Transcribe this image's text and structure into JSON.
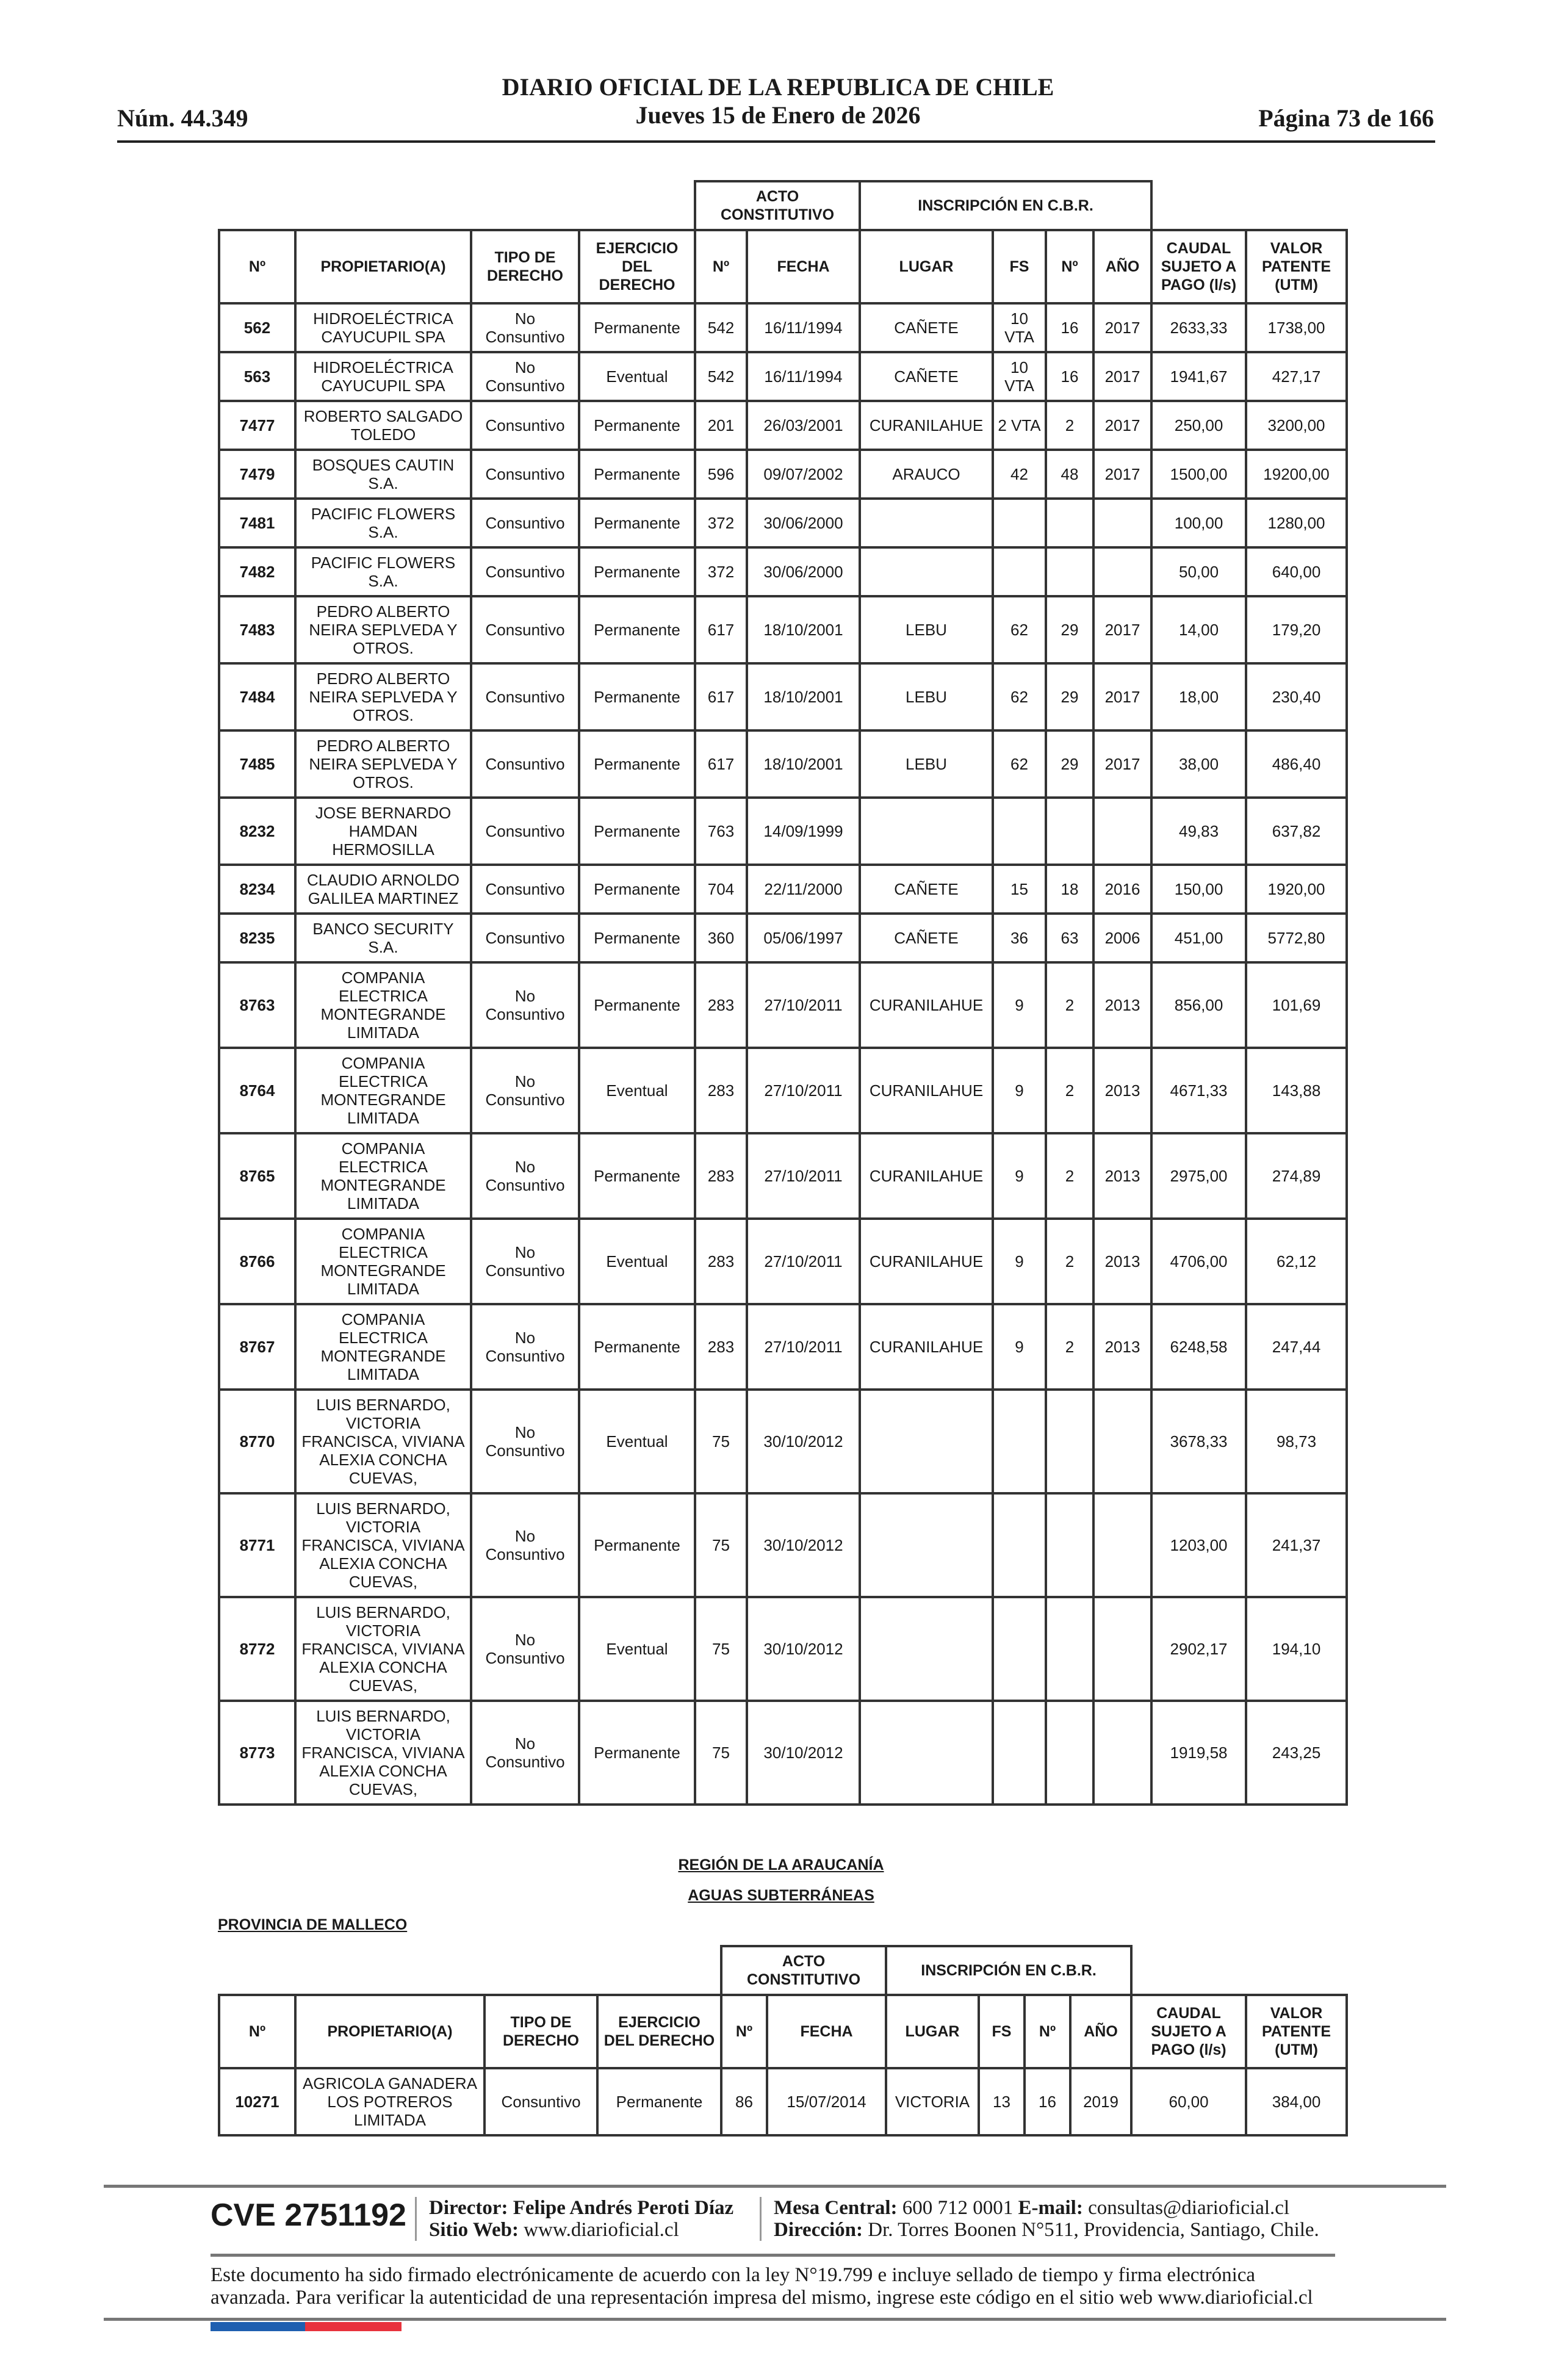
{
  "header": {
    "title": "DIARIO OFICIAL DE LA REPUBLICA DE CHILE",
    "date": "Jueves 15 de Enero de 2026",
    "number": "Núm. 44.349",
    "page": "Página 73 de 166"
  },
  "columns": {
    "group_acto": "ACTO CONSTITUTIVO",
    "group_inscripcion": "INSCRIPCIÓN EN C.B.R.",
    "headers": [
      "Nº",
      "PROPIETARIO(A)",
      "TIPO DE DERECHO",
      "EJERCICIO DEL DERECHO",
      "Nº",
      "FECHA",
      "LUGAR",
      "FS",
      "Nº",
      "AÑO",
      "CAUDAL SUJETO A PAGO (l/s)",
      "VALOR PATENTE (UTM)"
    ]
  },
  "table1": {
    "rows": [
      [
        "562",
        "HIDROELÉCTRICA CAYUCUPIL SPA",
        "No Consuntivo",
        "Permanente",
        "542",
        "16/11/1994",
        "CAÑETE",
        "10 VTA",
        "16",
        "2017",
        "2633,33",
        "1738,00"
      ],
      [
        "563",
        "HIDROELÉCTRICA CAYUCUPIL SPA",
        "No Consuntivo",
        "Eventual",
        "542",
        "16/11/1994",
        "CAÑETE",
        "10 VTA",
        "16",
        "2017",
        "1941,67",
        "427,17"
      ],
      [
        "7477",
        "ROBERTO SALGADO TOLEDO",
        "Consuntivo",
        "Permanente",
        "201",
        "26/03/2001",
        "CURANILAHUE",
        "2 VTA",
        "2",
        "2017",
        "250,00",
        "3200,00"
      ],
      [
        "7479",
        "BOSQUES CAUTIN S.A.",
        "Consuntivo",
        "Permanente",
        "596",
        "09/07/2002",
        "ARAUCO",
        "42",
        "48",
        "2017",
        "1500,00",
        "19200,00"
      ],
      [
        "7481",
        "PACIFIC FLOWERS S.A.",
        "Consuntivo",
        "Permanente",
        "372",
        "30/06/2000",
        "",
        "",
        "",
        "",
        "100,00",
        "1280,00"
      ],
      [
        "7482",
        "PACIFIC FLOWERS S.A.",
        "Consuntivo",
        "Permanente",
        "372",
        "30/06/2000",
        "",
        "",
        "",
        "",
        "50,00",
        "640,00"
      ],
      [
        "7483",
        "PEDRO ALBERTO NEIRA SEPLVEDA Y OTROS.",
        "Consuntivo",
        "Permanente",
        "617",
        "18/10/2001",
        "LEBU",
        "62",
        "29",
        "2017",
        "14,00",
        "179,20"
      ],
      [
        "7484",
        "PEDRO ALBERTO NEIRA SEPLVEDA Y OTROS.",
        "Consuntivo",
        "Permanente",
        "617",
        "18/10/2001",
        "LEBU",
        "62",
        "29",
        "2017",
        "18,00",
        "230,40"
      ],
      [
        "7485",
        "PEDRO ALBERTO NEIRA SEPLVEDA Y OTROS.",
        "Consuntivo",
        "Permanente",
        "617",
        "18/10/2001",
        "LEBU",
        "62",
        "29",
        "2017",
        "38,00",
        "486,40"
      ],
      [
        "8232",
        "JOSE BERNARDO HAMDAN HERMOSILLA",
        "Consuntivo",
        "Permanente",
        "763",
        "14/09/1999",
        "",
        "",
        "",
        "",
        "49,83",
        "637,82"
      ],
      [
        "8234",
        "CLAUDIO ARNOLDO GALILEA MARTINEZ",
        "Consuntivo",
        "Permanente",
        "704",
        "22/11/2000",
        "CAÑETE",
        "15",
        "18",
        "2016",
        "150,00",
        "1920,00"
      ],
      [
        "8235",
        "BANCO SECURITY S.A.",
        "Consuntivo",
        "Permanente",
        "360",
        "05/06/1997",
        "CAÑETE",
        "36",
        "63",
        "2006",
        "451,00",
        "5772,80"
      ],
      [
        "8763",
        "COMPANIA ELECTRICA MONTEGRANDE LIMITADA",
        "No Consuntivo",
        "Permanente",
        "283",
        "27/10/2011",
        "CURANILAHUE",
        "9",
        "2",
        "2013",
        "856,00",
        "101,69"
      ],
      [
        "8764",
        "COMPANIA ELECTRICA MONTEGRANDE LIMITADA",
        "No Consuntivo",
        "Eventual",
        "283",
        "27/10/2011",
        "CURANILAHUE",
        "9",
        "2",
        "2013",
        "4671,33",
        "143,88"
      ],
      [
        "8765",
        "COMPANIA ELECTRICA MONTEGRANDE LIMITADA",
        "No Consuntivo",
        "Permanente",
        "283",
        "27/10/2011",
        "CURANILAHUE",
        "9",
        "2",
        "2013",
        "2975,00",
        "274,89"
      ],
      [
        "8766",
        "COMPANIA ELECTRICA MONTEGRANDE LIMITADA",
        "No Consuntivo",
        "Eventual",
        "283",
        "27/10/2011",
        "CURANILAHUE",
        "9",
        "2",
        "2013",
        "4706,00",
        "62,12"
      ],
      [
        "8767",
        "COMPANIA ELECTRICA MONTEGRANDE LIMITADA",
        "No Consuntivo",
        "Permanente",
        "283",
        "27/10/2011",
        "CURANILAHUE",
        "9",
        "2",
        "2013",
        "6248,58",
        "247,44"
      ],
      [
        "8770",
        "LUIS BERNARDO, VICTORIA FRANCISCA, VIVIANA ALEXIA CONCHA CUEVAS,",
        "No Consuntivo",
        "Eventual",
        "75",
        "30/10/2012",
        "",
        "",
        "",
        "",
        "3678,33",
        "98,73"
      ],
      [
        "8771",
        "LUIS BERNARDO, VICTORIA FRANCISCA, VIVIANA ALEXIA CONCHA CUEVAS,",
        "No Consuntivo",
        "Permanente",
        "75",
        "30/10/2012",
        "",
        "",
        "",
        "",
        "1203,00",
        "241,37"
      ],
      [
        "8772",
        "LUIS BERNARDO, VICTORIA FRANCISCA, VIVIANA ALEXIA CONCHA CUEVAS,",
        "No Consuntivo",
        "Eventual",
        "75",
        "30/10/2012",
        "",
        "",
        "",
        "",
        "2902,17",
        "194,10"
      ],
      [
        "8773",
        "LUIS BERNARDO, VICTORIA FRANCISCA, VIVIANA ALEXIA CONCHA CUEVAS,",
        "No Consuntivo",
        "Permanente",
        "75",
        "30/10/2012",
        "",
        "",
        "",
        "",
        "1919,58",
        "243,25"
      ]
    ]
  },
  "section": {
    "region": "REGIÓN DE LA ARAUCANÍA",
    "type": "AGUAS SUBTERRÁNEAS",
    "province": "PROVINCIA DE MALLECO"
  },
  "table2": {
    "rows": [
      [
        "10271",
        "AGRICOLA GANADERA LOS POTREROS LIMITADA",
        "Consuntivo",
        "Permanente",
        "86",
        "15/07/2014",
        "VICTORIA",
        "13",
        "16",
        "2019",
        "60,00",
        "384,00"
      ]
    ]
  },
  "footer": {
    "cve": "CVE 2751192",
    "director_label": "Director:",
    "director": "Felipe Andrés Peroti Díaz",
    "web_label": "Sitio Web:",
    "web": "www.diarioficial.cl",
    "mesa_label": "Mesa Central:",
    "mesa": "600 712 0001",
    "email_label": "E-mail:",
    "email": "consultas@diarioficial.cl",
    "direccion_label": "Dirección:",
    "direccion": "Dr. Torres Boonen N°511, Providencia, Santiago, Chile.",
    "disclaimer": "Este documento ha sido firmado electrónicamente de acuerdo con la ley N°19.799 e incluye sellado de tiempo y firma electrónica avanzada. Para verificar la autenticidad de una representación impresa del mismo, ingrese este código en el sitio web www.diarioficial.cl"
  },
  "colors": {
    "flag_blue": "#1f5fb0",
    "flag_red": "#e8333d"
  }
}
